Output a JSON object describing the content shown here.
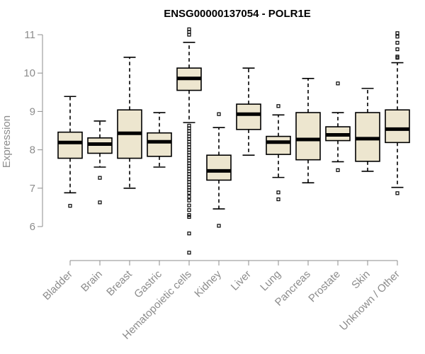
{
  "chart_data": {
    "type": "boxplot",
    "title": "ENSG00000137054 - POLR1E",
    "xlabel": "",
    "ylabel": "Expression",
    "ylim": [
      5.2,
      11.2
    ],
    "yticks": [
      6,
      7,
      8,
      9,
      10,
      11
    ],
    "grid": false,
    "categories": [
      "Bladder",
      "Brain",
      "Breast",
      "Gastric",
      "Hematopoietic cells",
      "Kidney",
      "Liver",
      "Lung",
      "Pancreas",
      "Prostate",
      "Skin",
      "Unknown / Other"
    ],
    "series": [
      {
        "category": "Bladder",
        "whisker_low": 6.88,
        "q1": 7.78,
        "median": 8.19,
        "q3": 8.46,
        "whisker_high": 9.39,
        "outliers": [
          6.54
        ]
      },
      {
        "category": "Brain",
        "whisker_low": 7.55,
        "q1": 7.91,
        "median": 8.15,
        "q3": 8.31,
        "whisker_high": 8.75,
        "outliers": [
          7.27,
          6.63
        ]
      },
      {
        "category": "Breast",
        "whisker_low": 7.0,
        "q1": 7.78,
        "median": 8.43,
        "q3": 9.04,
        "whisker_high": 10.41,
        "outliers": []
      },
      {
        "category": "Gastric",
        "whisker_low": 7.55,
        "q1": 7.83,
        "median": 8.21,
        "q3": 8.44,
        "whisker_high": 8.97,
        "outliers": []
      },
      {
        "category": "Hematopoietic cells",
        "whisker_low": 8.71,
        "q1": 9.55,
        "median": 9.86,
        "q3": 10.13,
        "whisker_high": 10.8,
        "outliers": [
          11.14,
          11.07,
          11.0,
          8.63,
          8.56,
          8.49,
          8.42,
          8.35,
          8.28,
          8.21,
          8.14,
          8.07,
          8.0,
          7.93,
          7.86,
          7.79,
          7.72,
          7.65,
          7.58,
          7.51,
          7.44,
          7.37,
          7.3,
          7.23,
          7.16,
          7.09,
          7.02,
          6.95,
          6.88,
          6.78,
          6.68,
          6.55,
          6.43,
          6.3,
          6.25,
          5.82,
          5.32
        ]
      },
      {
        "category": "Kidney",
        "whisker_low": 6.46,
        "q1": 7.21,
        "median": 7.45,
        "q3": 7.86,
        "whisker_high": 8.58,
        "outliers": [
          8.93,
          6.02
        ]
      },
      {
        "category": "Liver",
        "whisker_low": 7.86,
        "q1": 8.53,
        "median": 8.93,
        "q3": 9.19,
        "whisker_high": 10.13,
        "outliers": []
      },
      {
        "category": "Lung",
        "whisker_low": 7.28,
        "q1": 7.88,
        "median": 8.2,
        "q3": 8.35,
        "whisker_high": 8.91,
        "outliers": [
          9.14,
          6.89,
          6.71
        ]
      },
      {
        "category": "Pancreas",
        "whisker_low": 7.14,
        "q1": 7.74,
        "median": 8.27,
        "q3": 8.97,
        "whisker_high": 9.86,
        "outliers": []
      },
      {
        "category": "Prostate",
        "whisker_low": 7.69,
        "q1": 8.24,
        "median": 8.39,
        "q3": 8.6,
        "whisker_high": 8.97,
        "outliers": [
          9.73,
          7.47
        ]
      },
      {
        "category": "Skin",
        "whisker_low": 7.44,
        "q1": 7.7,
        "median": 8.29,
        "q3": 8.97,
        "whisker_high": 9.6,
        "outliers": []
      },
      {
        "category": "Unknown / Other",
        "whisker_low": 7.02,
        "q1": 8.19,
        "median": 8.54,
        "q3": 9.04,
        "whisker_high": 10.27,
        "outliers": [
          11.04,
          10.95,
          10.79,
          10.62,
          10.43,
          10.4,
          6.87
        ]
      }
    ]
  }
}
